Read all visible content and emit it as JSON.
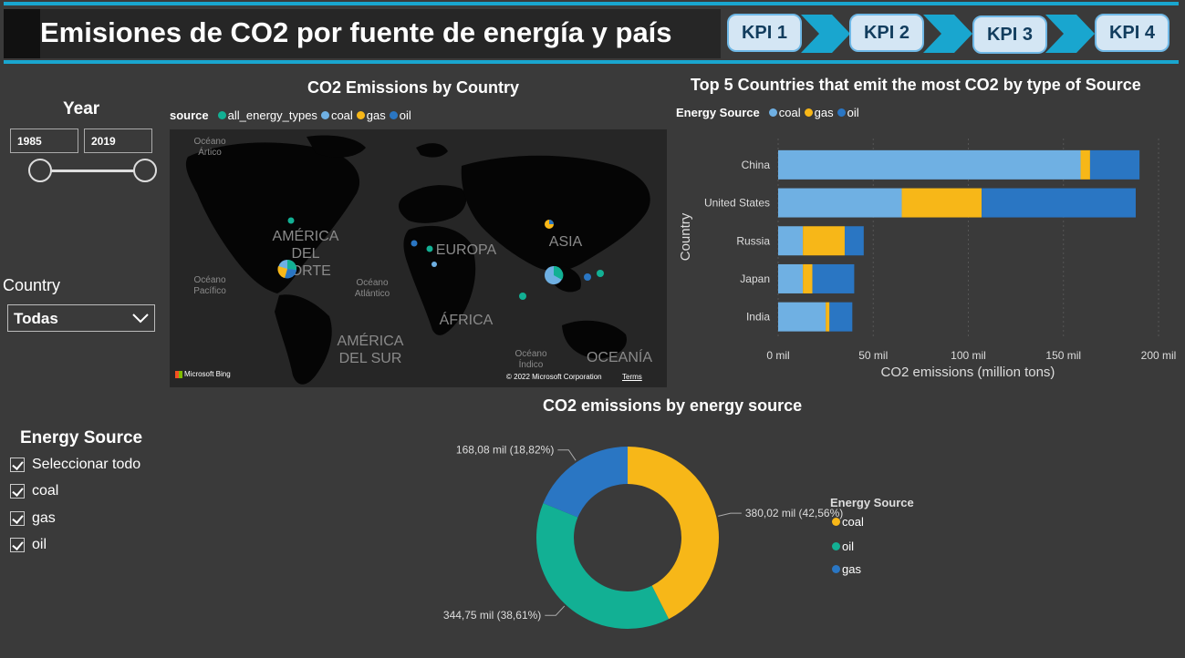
{
  "header": {
    "title": "Emisiones de CO2 por fuente de energía y país",
    "kpis": [
      "KPI 1",
      "KPI 2",
      "KPI 3",
      "KPI 4"
    ]
  },
  "year_slicer": {
    "title": "Year",
    "from": "1985",
    "to": "2019"
  },
  "country_slicer": {
    "title": "Country",
    "selected": "Todas"
  },
  "energy_slicer": {
    "title": "Energy Source",
    "options": [
      "Seleccionar todo",
      "coal",
      "gas",
      "oil"
    ]
  },
  "colors": {
    "coal": "#6fb0e3",
    "gas": "#f7b718",
    "oil": "#2a76c3",
    "all": "#12b094",
    "accent": "#19a6cf"
  },
  "map": {
    "title": "CO2 Emissions by Country",
    "legend_title": "source",
    "legend": [
      "all_energy_types",
      "coal",
      "gas",
      "oil"
    ],
    "regions": [
      "AMÉRICA DEL NORTE",
      "EUROPA",
      "ASIA",
      "ÁFRICA",
      "AMÉRICA DEL SUR",
      "OCEANÍA"
    ],
    "oceans": [
      "Océano Ártico",
      "Océano Pacífico",
      "Océano Atlántico",
      "Océano Índico"
    ],
    "attribution": "Microsoft Bing",
    "copyright": "© 2022 Microsoft Corporation",
    "terms": "Terms"
  },
  "bar_chart": {
    "title": "Top 5 Countries that emit the most CO2 by type of Source",
    "legend_title": "Energy Source",
    "legend": [
      "coal",
      "gas",
      "oil"
    ],
    "ylabel": "Country",
    "xlabel": "CO2 emissions (million tons)",
    "tick_labels": [
      "0 mil",
      "50 mil",
      "100 mil",
      "150 mil",
      "200 mil"
    ]
  },
  "donut": {
    "title": "CO2 emissions by energy source",
    "legend_title": "Energy Source",
    "legend": [
      "coal",
      "oil",
      "gas"
    ]
  },
  "chart_data": [
    {
      "type": "bar",
      "orientation": "horizontal-stacked",
      "categories": [
        "China",
        "United States",
        "Russia",
        "Japan",
        "India"
      ],
      "series": [
        {
          "name": "coal",
          "values": [
            159,
            65,
            13,
            13,
            25
          ]
        },
        {
          "name": "gas",
          "values": [
            5,
            42,
            22,
            5,
            2
          ]
        },
        {
          "name": "oil",
          "values": [
            26,
            81,
            10,
            22,
            12
          ]
        }
      ],
      "xlim": [
        0,
        200
      ],
      "grid": true
    },
    {
      "type": "pie",
      "donut": true,
      "slices": [
        {
          "value": 380.02,
          "percent": 42.56,
          "label": "380,02 mil (42,56%)",
          "color": "#f7b718"
        },
        {
          "value": 344.75,
          "percent": 38.61,
          "label": "344,75 mil (38,61%)",
          "color": "#12b094"
        },
        {
          "value": 168.08,
          "percent": 18.82,
          "label": "168,08 mil (18,82%)",
          "color": "#2a76c3"
        }
      ]
    }
  ]
}
